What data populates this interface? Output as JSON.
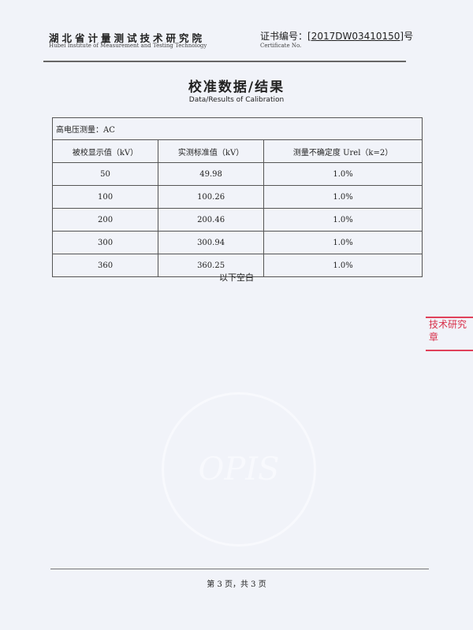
{
  "header": {
    "institute": "湖北省计量测试技术研究院",
    "institute_en": "Hubei Institute of Measurement and Testing Technology",
    "cert_label": "证书编号：",
    "cert_number": "[2017DW03410150]",
    "cert_suffix": "号",
    "cert_label_en": "Certificate No."
  },
  "title": "校准数据/结果",
  "subtitle": "Data/Results of Calibration",
  "table": {
    "caption": "高电压测量：AC",
    "headers": [
      "被校显示值（kV）",
      "实测标准值（kV）",
      "测量不确定度 Urel（k=2）"
    ],
    "rows": [
      [
        "50",
        "49.98",
        "1.0%"
      ],
      [
        "100",
        "100.26",
        "1.0%"
      ],
      [
        "200",
        "200.46",
        "1.0%"
      ],
      [
        "300",
        "300.94",
        "1.0%"
      ],
      [
        "360",
        "360.25",
        "1.0%"
      ]
    ]
  },
  "blank_note": "以下空白",
  "stamp": {
    "line1": "技术研究",
    "line2": "章"
  },
  "watermark": "OPIS",
  "footer": "第 3 页，共 3 页",
  "colors": {
    "stamp": "#d8304a",
    "background": "#f1f3f9"
  }
}
